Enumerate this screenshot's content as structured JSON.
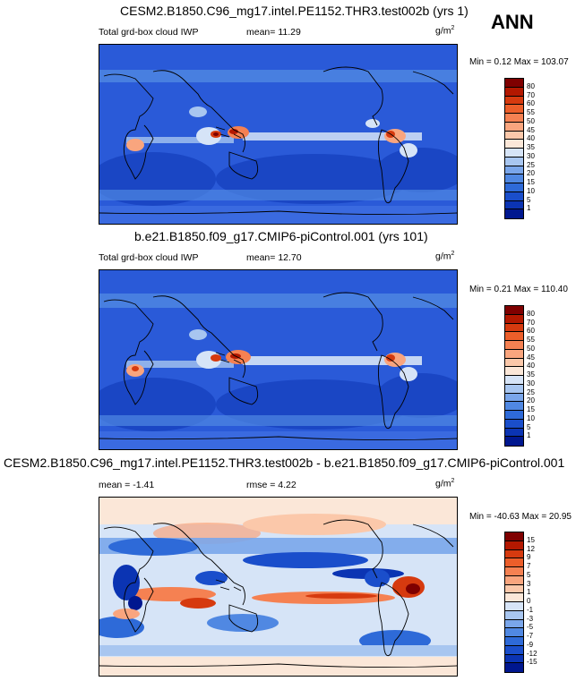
{
  "season": "ANN",
  "panels": [
    {
      "title": "CESM2.B1850.C96_mg17.intel.PE1152.THR3.test002b (yrs 1)",
      "left_label": "Total grd-box cloud IWP",
      "center_label": "mean=  11.29",
      "units": "g/m",
      "units_sup": "2",
      "minmax": "Min =   0.12 Max = 103.07",
      "ticks": [
        "80",
        "70",
        "60",
        "55",
        "50",
        "45",
        "40",
        "35",
        "30",
        "25",
        "20",
        "15",
        "10",
        "5",
        "1"
      ],
      "colors": [
        "#7f0000",
        "#b31800",
        "#d63a0f",
        "#ec5e2a",
        "#f58152",
        "#f9a57e",
        "#fbc8aa",
        "#fbe7d8",
        "#d6e4f7",
        "#a8c6f0",
        "#7aa6ea",
        "#5088e2",
        "#2e6ad8",
        "#1a4ecb",
        "#0b34b3",
        "#00178f"
      ]
    },
    {
      "title": "b.e21.B1850.f09_g17.CMIP6-piControl.001 (yrs 101)",
      "left_label": "Total grd-box cloud IWP",
      "center_label": "mean=  12.70",
      "units": "g/m",
      "units_sup": "2",
      "minmax": "Min =   0.21 Max = 110.40",
      "ticks": [
        "80",
        "70",
        "60",
        "55",
        "50",
        "45",
        "40",
        "35",
        "30",
        "25",
        "20",
        "15",
        "10",
        "5",
        "1"
      ],
      "colors": [
        "#7f0000",
        "#b31800",
        "#d63a0f",
        "#ec5e2a",
        "#f58152",
        "#f9a57e",
        "#fbc8aa",
        "#fbe7d8",
        "#d6e4f7",
        "#a8c6f0",
        "#7aa6ea",
        "#5088e2",
        "#2e6ad8",
        "#1a4ecb",
        "#0b34b3",
        "#00178f"
      ]
    },
    {
      "title": "CESM2.B1850.C96_mg17.intel.PE1152.THR3.test002b - b.e21.B1850.f09_g17.CMIP6-piControl.001",
      "left_label": "mean =  -1.41",
      "center_label": "rmse =   4.22",
      "units": "g/m",
      "units_sup": "2",
      "minmax": "Min = -40.63 Max = 20.95",
      "ticks": [
        "15",
        "12",
        "9",
        "7",
        "5",
        "3",
        "1",
        "0",
        "-1",
        "-3",
        "-5",
        "-7",
        "-9",
        "-12",
        "-15"
      ],
      "colors": [
        "#7f0000",
        "#b31800",
        "#d63a0f",
        "#ec5e2a",
        "#f58152",
        "#f9a57e",
        "#fbc8aa",
        "#fbe7d8",
        "#d6e4f7",
        "#a8c6f0",
        "#7aa6ea",
        "#5088e2",
        "#2e6ad8",
        "#1a4ecb",
        "#0b34b3",
        "#00178f"
      ]
    }
  ]
}
